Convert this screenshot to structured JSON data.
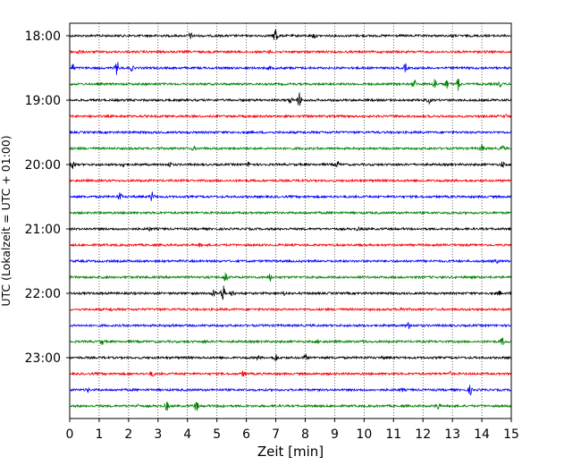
{
  "chart_data": {
    "type": "line",
    "title": "",
    "xlabel": "Zeit  [min]",
    "ylabel": "UTC (Lokalzeit = UTC + 01:00)",
    "xlim": [
      0,
      15
    ],
    "x_ticks": [
      "0",
      "1",
      "2",
      "3",
      "4",
      "5",
      "6",
      "7",
      "8",
      "9",
      "10",
      "11",
      "12",
      "13",
      "14",
      "15"
    ],
    "y_ticks": [
      "18:00",
      "19:00",
      "20:00",
      "21:00",
      "22:00",
      "23:00"
    ],
    "grid": "vertical dotted at each minute",
    "trace_colors": [
      "#000000",
      "#ff0000",
      "#0000ff",
      "#008000"
    ],
    "series": [
      {
        "start": "18:00",
        "color": "#000000",
        "events": [
          {
            "x": 7.0,
            "amp": 11
          },
          {
            "x": 4.1,
            "amp": 3
          },
          {
            "x": 8.3,
            "amp": 2.5
          },
          {
            "x": 13.0,
            "amp": 1.5
          }
        ]
      },
      {
        "start": "18:15",
        "color": "#ff0000",
        "events": [
          {
            "x": 0.3,
            "amp": 2
          },
          {
            "x": 6.8,
            "amp": 1.5
          }
        ]
      },
      {
        "start": "18:30",
        "color": "#0000ff",
        "events": [
          {
            "x": 1.6,
            "amp": 8
          },
          {
            "x": 0.1,
            "amp": 4
          },
          {
            "x": 2.1,
            "amp": 2.5
          },
          {
            "x": 11.4,
            "amp": 4
          },
          {
            "x": 6.8,
            "amp": 1.5
          }
        ]
      },
      {
        "start": "18:45",
        "color": "#008000",
        "events": [
          {
            "x": 11.7,
            "amp": 5
          },
          {
            "x": 12.4,
            "amp": 6
          },
          {
            "x": 12.8,
            "amp": 5
          },
          {
            "x": 13.2,
            "amp": 7
          },
          {
            "x": 14.6,
            "amp": 3
          }
        ]
      },
      {
        "start": "19:00",
        "color": "#000000",
        "events": [
          {
            "x": 7.8,
            "amp": 8
          },
          {
            "x": 7.5,
            "amp": 3
          },
          {
            "x": 12.2,
            "amp": 3
          }
        ]
      },
      {
        "start": "19:15",
        "color": "#ff0000",
        "events": [
          {
            "x": 14.8,
            "amp": 1.5
          }
        ]
      },
      {
        "start": "19:30",
        "color": "#0000ff",
        "events": []
      },
      {
        "start": "19:45",
        "color": "#008000",
        "events": [
          {
            "x": 14.0,
            "amp": 4
          },
          {
            "x": 14.7,
            "amp": 3
          },
          {
            "x": 4.2,
            "amp": 1.5
          }
        ]
      },
      {
        "start": "20:00",
        "color": "#000000",
        "events": [
          {
            "x": 0.1,
            "amp": 5
          },
          {
            "x": 1.8,
            "amp": 2.5
          },
          {
            "x": 3.4,
            "amp": 2.5
          },
          {
            "x": 6.1,
            "amp": 2.5
          },
          {
            "x": 9.1,
            "amp": 3
          },
          {
            "x": 14.7,
            "amp": 3
          }
        ]
      },
      {
        "start": "20:15",
        "color": "#ff0000",
        "events": []
      },
      {
        "start": "20:30",
        "color": "#0000ff",
        "events": [
          {
            "x": 1.7,
            "amp": 5
          },
          {
            "x": 2.8,
            "amp": 5
          }
        ]
      },
      {
        "start": "20:45",
        "color": "#008000",
        "events": []
      },
      {
        "start": "21:00",
        "color": "#000000",
        "events": [
          {
            "x": 2.7,
            "amp": 1.5
          },
          {
            "x": 9.8,
            "amp": 1.5
          }
        ]
      },
      {
        "start": "21:15",
        "color": "#ff0000",
        "events": [
          {
            "x": 4.4,
            "amp": 1.5
          }
        ]
      },
      {
        "start": "21:30",
        "color": "#0000ff",
        "events": [
          {
            "x": 14.5,
            "amp": 1.5
          }
        ]
      },
      {
        "start": "21:45",
        "color": "#008000",
        "events": [
          {
            "x": 5.3,
            "amp": 6
          },
          {
            "x": 6.8,
            "amp": 4
          },
          {
            "x": 1.2,
            "amp": 1.5
          }
        ]
      },
      {
        "start": "22:00",
        "color": "#000000",
        "events": [
          {
            "x": 5.2,
            "amp": 10
          },
          {
            "x": 4.9,
            "amp": 4
          },
          {
            "x": 5.5,
            "amp": 3
          },
          {
            "x": 7.3,
            "amp": 2
          },
          {
            "x": 14.6,
            "amp": 2
          }
        ]
      },
      {
        "start": "22:15",
        "color": "#ff0000",
        "events": [
          {
            "x": 11.3,
            "amp": 3
          },
          {
            "x": 1.4,
            "amp": 1.5
          }
        ]
      },
      {
        "start": "22:30",
        "color": "#0000ff",
        "events": [
          {
            "x": 11.5,
            "amp": 3.5
          },
          {
            "x": 3.5,
            "amp": 1.5
          }
        ]
      },
      {
        "start": "22:45",
        "color": "#008000",
        "events": [
          {
            "x": 1.1,
            "amp": 3
          },
          {
            "x": 14.7,
            "amp": 4
          },
          {
            "x": 4.6,
            "amp": 1.5
          },
          {
            "x": 8.4,
            "amp": 1.5
          },
          {
            "x": 10.0,
            "amp": 1.5
          }
        ]
      },
      {
        "start": "23:00",
        "color": "#000000",
        "events": [
          {
            "x": 7.0,
            "amp": 4
          },
          {
            "x": 8.0,
            "amp": 3
          },
          {
            "x": 6.4,
            "amp": 2
          },
          {
            "x": 10.7,
            "amp": 1.5
          }
        ]
      },
      {
        "start": "23:15",
        "color": "#ff0000",
        "events": [
          {
            "x": 2.8,
            "amp": 3
          },
          {
            "x": 5.9,
            "amp": 3
          },
          {
            "x": 12.9,
            "amp": 2
          }
        ]
      },
      {
        "start": "23:30",
        "color": "#0000ff",
        "events": [
          {
            "x": 13.6,
            "amp": 5
          },
          {
            "x": 0.6,
            "amp": 2
          },
          {
            "x": 11.3,
            "amp": 1.5
          }
        ]
      },
      {
        "start": "23:45",
        "color": "#008000",
        "events": [
          {
            "x": 3.3,
            "amp": 5
          },
          {
            "x": 4.3,
            "amp": 6
          },
          {
            "x": 12.5,
            "amp": 4
          },
          {
            "x": 2.3,
            "amp": 2
          },
          {
            "x": 5.2,
            "amp": 2
          }
        ]
      }
    ]
  }
}
